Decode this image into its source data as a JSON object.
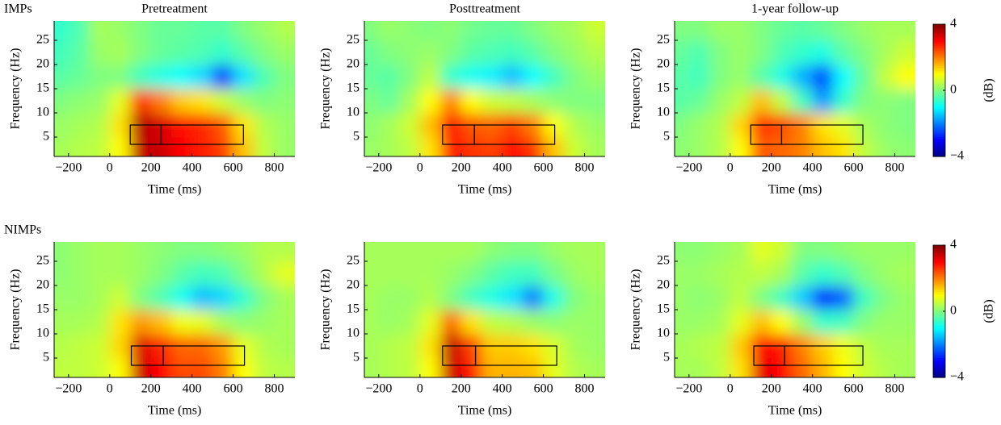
{
  "chart_data": [
    {
      "type": "heatmap",
      "group": "IMPs",
      "title": "Pretreatment",
      "xlabel": "Time (ms)",
      "ylabel": "Frequency (Hz)",
      "colormap": "jet",
      "xlim": [
        -270,
        900
      ],
      "ylim": [
        1,
        29
      ],
      "xticks": [
        {
          "value": -200,
          "label": "−200"
        },
        0,
        200,
        400,
        600,
        800
      ],
      "yticks": [
        5,
        10,
        15,
        20,
        25
      ],
      "x": [
        -250,
        -150,
        -50,
        50,
        150,
        250,
        350,
        450,
        550,
        650,
        750,
        850
      ],
      "y": [
        2.5,
        7.5,
        12.5,
        17.5,
        22.5,
        27.5
      ],
      "values": [
        [
          0.3,
          0.4,
          0.5,
          1.0,
          3.5,
          3.4,
          3.0,
          2.8,
          2.5,
          1.5,
          0.5,
          0.2
        ],
        [
          0.2,
          0.3,
          0.4,
          1.2,
          3.6,
          3.3,
          2.9,
          2.7,
          2.3,
          1.2,
          0.4,
          0.2
        ],
        [
          0.0,
          0.1,
          0.2,
          0.8,
          2.6,
          2.0,
          1.4,
          1.2,
          0.6,
          0.2,
          0.0,
          0.1
        ],
        [
          -0.3,
          -0.2,
          0.0,
          0.0,
          -0.5,
          -0.8,
          -1.0,
          -1.3,
          -2.6,
          -1.2,
          -0.4,
          0.0
        ],
        [
          -0.5,
          -0.3,
          0.2,
          0.3,
          0.0,
          -0.2,
          -0.3,
          -0.4,
          -0.6,
          -0.3,
          0.0,
          0.2
        ],
        [
          -0.6,
          -0.4,
          0.3,
          0.2,
          0.0,
          -0.2,
          -0.2,
          -0.3,
          -0.3,
          0.0,
          0.2,
          0.4
        ]
      ],
      "boxes": [
        {
          "x": [
            100,
            250
          ],
          "y": [
            3.5,
            7.5
          ]
        },
        {
          "x": [
            250,
            650
          ],
          "y": [
            3.5,
            7.5
          ]
        }
      ]
    },
    {
      "type": "heatmap",
      "title": "Posttreatment",
      "xlabel": "Time (ms)",
      "ylabel": "Frequency (Hz)",
      "colormap": "jet",
      "xlim": [
        -270,
        900
      ],
      "ylim": [
        1,
        29
      ],
      "xticks": [
        {
          "value": -200,
          "label": "−200"
        },
        0,
        200,
        400,
        600,
        800
      ],
      "yticks": [
        5,
        10,
        15,
        20,
        25
      ],
      "x": [
        -250,
        -150,
        -50,
        50,
        150,
        250,
        350,
        450,
        550,
        650,
        750,
        850
      ],
      "y": [
        2.5,
        7.5,
        12.5,
        17.5,
        22.5,
        27.5
      ],
      "values": [
        [
          0.2,
          0.3,
          0.5,
          1.2,
          2.8,
          2.6,
          2.5,
          2.9,
          2.6,
          1.5,
          0.6,
          0.3
        ],
        [
          0.1,
          0.3,
          0.6,
          1.5,
          3.0,
          2.3,
          2.2,
          2.5,
          2.0,
          1.0,
          0.4,
          0.2
        ],
        [
          0.0,
          -0.2,
          0.3,
          1.0,
          2.0,
          1.0,
          0.6,
          0.5,
          0.3,
          0.1,
          0.0,
          0.0
        ],
        [
          -0.2,
          -0.3,
          0.0,
          0.5,
          -0.6,
          -0.9,
          -1.1,
          -1.5,
          -1.0,
          -0.5,
          0.0,
          0.2
        ],
        [
          -0.2,
          0.0,
          0.1,
          0.2,
          0.0,
          -0.3,
          -0.4,
          -0.5,
          -0.3,
          0.0,
          0.2,
          0.4
        ],
        [
          0.0,
          0.2,
          0.1,
          0.0,
          0.1,
          -0.1,
          -0.2,
          -0.2,
          0.0,
          0.2,
          0.3,
          0.6
        ]
      ],
      "boxes": [
        {
          "x": [
            110,
            265
          ],
          "y": [
            3.5,
            7.5
          ]
        },
        {
          "x": [
            265,
            655
          ],
          "y": [
            3.5,
            7.5
          ]
        }
      ]
    },
    {
      "type": "heatmap",
      "title": "1-year follow-up",
      "xlabel": "Time (ms)",
      "ylabel": "Frequency (Hz)",
      "colormap": "jet",
      "xlim": [
        -270,
        900
      ],
      "ylim": [
        1,
        29
      ],
      "xticks": [
        {
          "value": -200,
          "label": "−200"
        },
        0,
        200,
        400,
        600,
        800
      ],
      "yticks": [
        5,
        10,
        15,
        20,
        25
      ],
      "x": [
        -250,
        -150,
        -50,
        50,
        150,
        250,
        350,
        450,
        550,
        650,
        750,
        850
      ],
      "y": [
        2.5,
        7.5,
        12.5,
        17.5,
        22.5,
        27.5
      ],
      "values": [
        [
          0.1,
          0.2,
          0.4,
          1.0,
          2.3,
          2.2,
          2.0,
          1.5,
          1.2,
          0.5,
          0.2,
          0.1
        ],
        [
          0.0,
          0.2,
          0.4,
          1.3,
          2.6,
          2.4,
          2.0,
          1.2,
          0.8,
          0.3,
          0.1,
          0.0
        ],
        [
          -0.3,
          -0.2,
          0.2,
          0.5,
          1.5,
          0.5,
          -0.5,
          -1.8,
          -0.6,
          0.0,
          0.1,
          0.0
        ],
        [
          -0.3,
          -0.5,
          0.0,
          0.2,
          -0.3,
          -0.8,
          -1.6,
          -2.5,
          -1.0,
          -0.2,
          0.5,
          1.0
        ],
        [
          -0.2,
          -0.4,
          0.0,
          0.2,
          0.0,
          -0.4,
          -0.6,
          -0.8,
          -0.3,
          0.0,
          0.3,
          0.6
        ],
        [
          0.0,
          0.0,
          0.2,
          0.2,
          0.0,
          -0.2,
          -0.3,
          -0.2,
          0.0,
          0.2,
          0.3,
          0.3
        ]
      ],
      "boxes": [
        {
          "x": [
            100,
            250
          ],
          "y": [
            3.5,
            7.5
          ]
        },
        {
          "x": [
            250,
            645
          ],
          "y": [
            3.5,
            7.5
          ]
        }
      ],
      "colorbar": {
        "lim": [
          -4,
          4
        ],
        "ticks": [
          4,
          0,
          {
            "value": -4,
            "label": "−4"
          }
        ],
        "label": "(dB)"
      }
    },
    {
      "type": "heatmap",
      "group": "NIMPs",
      "xlabel": "Time (ms)",
      "ylabel": "Frequency (Hz)",
      "colormap": "jet",
      "xlim": [
        -270,
        900
      ],
      "ylim": [
        1,
        29
      ],
      "xticks": [
        {
          "value": -200,
          "label": "−200"
        },
        0,
        200,
        400,
        600,
        800
      ],
      "yticks": [
        5,
        10,
        15,
        20,
        25
      ],
      "x": [
        -250,
        -150,
        -50,
        50,
        150,
        250,
        350,
        450,
        550,
        650,
        750,
        850
      ],
      "y": [
        2.5,
        7.5,
        12.5,
        17.5,
        22.5,
        27.5
      ],
      "values": [
        [
          0.5,
          0.5,
          0.6,
          1.0,
          3.4,
          3.0,
          2.4,
          2.4,
          2.0,
          1.0,
          0.5,
          0.4
        ],
        [
          0.4,
          0.5,
          0.6,
          1.3,
          3.3,
          2.7,
          2.2,
          2.2,
          1.8,
          0.8,
          0.4,
          0.3
        ],
        [
          0.3,
          0.3,
          0.4,
          1.2,
          1.8,
          1.5,
          0.9,
          0.8,
          0.3,
          0.1,
          0.2,
          0.3
        ],
        [
          0.2,
          0.2,
          0.3,
          0.6,
          0.0,
          -0.4,
          -0.9,
          -1.5,
          -1.3,
          -0.6,
          0.0,
          0.3
        ],
        [
          0.1,
          0.2,
          0.3,
          0.3,
          0.2,
          0.0,
          -0.3,
          -0.5,
          -0.4,
          0.0,
          0.4,
          0.8
        ],
        [
          0.1,
          0.2,
          0.3,
          0.3,
          0.2,
          0.1,
          0.0,
          0.0,
          0.1,
          0.2,
          0.4,
          0.4
        ]
      ],
      "boxes": [
        {
          "x": [
            105,
            260
          ],
          "y": [
            3.5,
            7.5
          ]
        },
        {
          "x": [
            260,
            655
          ],
          "y": [
            3.5,
            7.5
          ]
        }
      ]
    },
    {
      "type": "heatmap",
      "xlabel": "Time (ms)",
      "ylabel": "Frequency (Hz)",
      "colormap": "jet",
      "xlim": [
        -270,
        900
      ],
      "ylim": [
        1,
        29
      ],
      "xticks": [
        {
          "value": -200,
          "label": "−200"
        },
        0,
        200,
        400,
        600,
        800
      ],
      "yticks": [
        5,
        10,
        15,
        20,
        25
      ],
      "x": [
        -250,
        -150,
        -50,
        50,
        150,
        250,
        350,
        450,
        550,
        650,
        750,
        850
      ],
      "y": [
        2.5,
        7.5,
        12.5,
        17.5,
        22.5,
        27.5
      ],
      "values": [
        [
          0.3,
          0.4,
          0.5,
          1.0,
          3.4,
          2.8,
          1.6,
          1.6,
          1.5,
          0.8,
          0.4,
          0.3
        ],
        [
          0.3,
          0.4,
          0.5,
          1.2,
          3.5,
          2.5,
          1.4,
          1.4,
          1.2,
          0.7,
          0.3,
          0.2
        ],
        [
          0.3,
          0.2,
          0.3,
          0.8,
          2.2,
          1.2,
          0.5,
          0.4,
          0.2,
          0.1,
          0.2,
          0.2
        ],
        [
          0.3,
          0.2,
          0.2,
          0.4,
          0.0,
          -0.5,
          -0.8,
          -1.2,
          -2.0,
          -0.8,
          0.0,
          0.2
        ],
        [
          0.3,
          0.3,
          0.3,
          0.3,
          0.2,
          0.0,
          -0.3,
          -0.5,
          -0.5,
          -0.1,
          0.2,
          0.3
        ],
        [
          0.3,
          0.3,
          0.3,
          0.3,
          0.3,
          0.3,
          0.1,
          0.0,
          0.0,
          0.2,
          0.3,
          0.3
        ]
      ],
      "boxes": [
        {
          "x": [
            110,
            270
          ],
          "y": [
            3.5,
            7.5
          ]
        },
        {
          "x": [
            270,
            665
          ],
          "y": [
            3.5,
            7.5
          ]
        }
      ]
    },
    {
      "type": "heatmap",
      "xlabel": "Time (ms)",
      "ylabel": "Frequency (Hz)",
      "colormap": "jet",
      "xlim": [
        -270,
        900
      ],
      "ylim": [
        1,
        29
      ],
      "xticks": [
        {
          "value": -200,
          "label": "−200"
        },
        0,
        200,
        400,
        600,
        800
      ],
      "yticks": [
        5,
        10,
        15,
        20,
        25
      ],
      "x": [
        -250,
        -150,
        -50,
        50,
        150,
        250,
        350,
        450,
        550,
        650,
        750,
        850
      ],
      "y": [
        2.5,
        7.5,
        12.5,
        17.5,
        22.5,
        27.5
      ],
      "values": [
        [
          0.3,
          0.3,
          0.5,
          1.2,
          3.2,
          3.0,
          2.2,
          1.6,
          1.0,
          0.6,
          0.4,
          0.3
        ],
        [
          0.3,
          0.4,
          0.5,
          1.4,
          3.0,
          2.8,
          2.0,
          1.4,
          0.9,
          0.5,
          0.3,
          0.3
        ],
        [
          0.2,
          0.2,
          0.3,
          0.8,
          1.5,
          1.0,
          0.2,
          -0.6,
          -0.5,
          0.0,
          0.2,
          0.2
        ],
        [
          0.2,
          0.1,
          0.2,
          0.5,
          0.0,
          -0.5,
          -1.4,
          -2.8,
          -2.2,
          -0.5,
          0.0,
          0.2
        ],
        [
          0.2,
          0.2,
          0.3,
          0.4,
          0.5,
          0.3,
          -0.3,
          -0.6,
          -0.4,
          0.0,
          0.2,
          0.3
        ],
        [
          0.1,
          0.1,
          0.2,
          0.3,
          0.8,
          0.6,
          0.0,
          0.0,
          0.1,
          0.2,
          0.2,
          0.2
        ]
      ],
      "boxes": [
        {
          "x": [
            115,
            265
          ],
          "y": [
            3.5,
            7.5
          ]
        },
        {
          "x": [
            265,
            645
          ],
          "y": [
            3.5,
            7.5
          ]
        }
      ],
      "colorbar": {
        "lim": [
          -4,
          4
        ],
        "ticks": [
          4,
          0,
          {
            "value": -4,
            "label": "−4"
          }
        ],
        "label": "(dB)"
      }
    }
  ]
}
